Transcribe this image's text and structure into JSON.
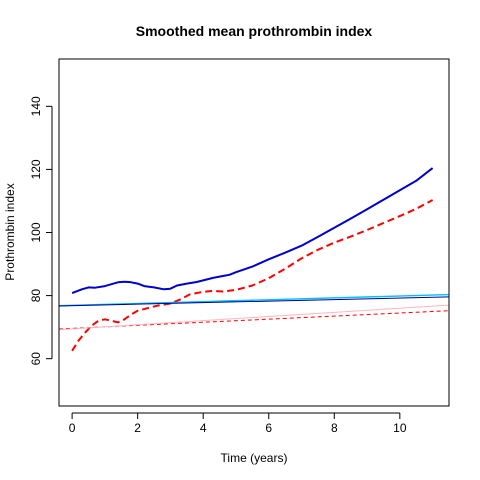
{
  "chart_data": {
    "type": "line",
    "title": "Smoothed mean prothrombin index",
    "xlabel": "Time (years)",
    "ylabel": "Prothrombin index",
    "xlim": [
      -0.4,
      11.5
    ],
    "ylim": [
      45,
      155
    ],
    "x_ticks": [
      0,
      2,
      4,
      6,
      8,
      10
    ],
    "y_ticks": [
      60,
      80,
      100,
      120,
      140
    ],
    "grid": false,
    "legend": "none",
    "series": [
      {
        "color": "#0000CD",
        "dash": "solid",
        "width": 2,
        "x": [
          0,
          0.3,
          0.5,
          0.7,
          1.0,
          1.2,
          1.4,
          1.6,
          1.8,
          2.0,
          2.2,
          2.5,
          2.8,
          3.0,
          3.2,
          3.5,
          3.8,
          4.0,
          4.3,
          4.6,
          4.8,
          5.0,
          5.5,
          6.0,
          6.5,
          7.0,
          7.5,
          8.0,
          8.5,
          9.0,
          9.5,
          10.0,
          10.5,
          11.0
        ],
        "y": [
          80.8,
          82.0,
          82.6,
          82.5,
          83.0,
          83.6,
          84.2,
          84.4,
          84.2,
          83.8,
          83.0,
          82.6,
          82.0,
          82.2,
          83.2,
          83.8,
          84.3,
          84.8,
          85.6,
          86.2,
          86.6,
          87.4,
          89.2,
          91.5,
          93.6,
          95.8,
          98.6,
          101.5,
          104.4,
          107.4,
          110.4,
          113.4,
          116.4,
          120.4
        ]
      },
      {
        "color": "#FF0000",
        "dash": "dashed",
        "width": 2,
        "x": [
          0,
          0.2,
          0.4,
          0.6,
          0.8,
          1.0,
          1.2,
          1.4,
          1.6,
          1.8,
          2.0,
          2.3,
          2.6,
          3.0,
          3.3,
          3.6,
          4.0,
          4.3,
          4.6,
          5.0,
          5.5,
          6.0,
          6.5,
          7.0,
          7.5,
          8.0,
          8.5,
          9.0,
          9.5,
          10.0,
          10.5,
          11.0
        ],
        "y": [
          62.5,
          65.8,
          68.3,
          70.5,
          72.0,
          72.5,
          72.0,
          71.5,
          72.5,
          74.0,
          75.2,
          76.0,
          76.8,
          77.5,
          78.8,
          80.4,
          81.2,
          81.5,
          81.3,
          81.8,
          83.2,
          85.5,
          88.5,
          91.8,
          94.5,
          96.8,
          98.7,
          100.8,
          103.0,
          105.2,
          107.5,
          110.3
        ]
      },
      {
        "color": "#00BFFF",
        "dash": "solid",
        "width": 1.4,
        "x": [
          -0.4,
          11.5
        ],
        "y": [
          76.8,
          80.3
        ]
      },
      {
        "color": "#00008B",
        "dash": "solid",
        "width": 1,
        "x": [
          -0.4,
          11.5
        ],
        "y": [
          76.7,
          79.6
        ]
      },
      {
        "color": "#FF0000",
        "dash": "dashed",
        "width": 1,
        "x": [
          -0.4,
          11.5
        ],
        "y": [
          69.4,
          75.2
        ]
      },
      {
        "color": "#FFB6C1",
        "dash": "solid",
        "width": 1,
        "x": [
          -0.4,
          11.5
        ],
        "y": [
          69.2,
          77.0
        ]
      }
    ]
  }
}
